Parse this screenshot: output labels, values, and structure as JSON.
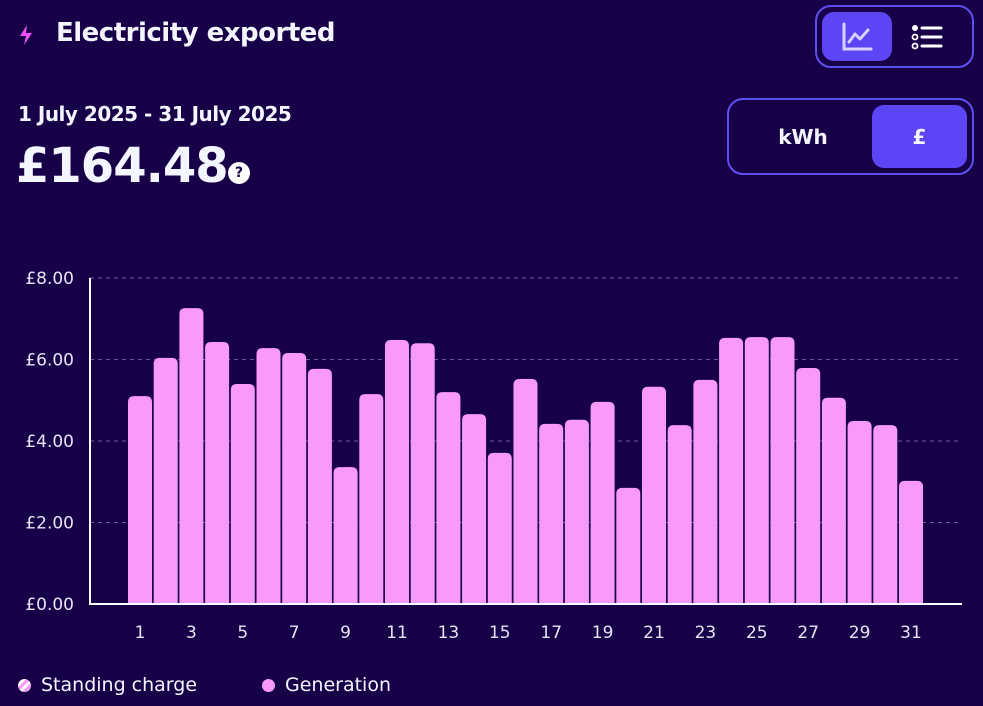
{
  "header": {
    "title": "Electricity exported",
    "icon": "lightning-bolt-icon",
    "icon_color": "#f050f8"
  },
  "summary": {
    "date_range": "1 July 2025 - 31 July 2025",
    "total": "£164.48",
    "help_label": "?"
  },
  "view_toggle": {
    "options": [
      "chart",
      "list"
    ],
    "selected": "chart"
  },
  "unit_toggle": {
    "options": [
      "kWh",
      "£"
    ],
    "selected": "£"
  },
  "colors": {
    "background": "#180048",
    "accent": "#5b45f5",
    "bar": "#f99afb"
  },
  "chart_data": {
    "type": "bar",
    "categories": [
      "1",
      "2",
      "3",
      "4",
      "5",
      "6",
      "7",
      "8",
      "9",
      "10",
      "11",
      "12",
      "13",
      "14",
      "15",
      "16",
      "17",
      "18",
      "19",
      "20",
      "21",
      "22",
      "23",
      "24",
      "25",
      "26",
      "27",
      "28",
      "29",
      "30",
      "31"
    ],
    "x_tick_labels": [
      "1",
      "3",
      "5",
      "7",
      "9",
      "11",
      "13",
      "15",
      "17",
      "19",
      "21",
      "23",
      "25",
      "27",
      "29",
      "31"
    ],
    "series": [
      {
        "name": "Generation",
        "values": [
          5.1,
          6.04,
          7.26,
          6.43,
          5.4,
          6.28,
          6.16,
          5.77,
          3.36,
          5.15,
          6.48,
          6.4,
          5.2,
          4.66,
          3.71,
          5.52,
          4.42,
          4.52,
          4.96,
          2.85,
          5.33,
          4.39,
          5.5,
          6.53,
          6.55,
          6.55,
          5.79,
          5.06,
          4.49,
          4.39,
          3.02
        ]
      }
    ],
    "ylim": [
      0,
      8
    ],
    "y_ticks": [
      0,
      2,
      4,
      6,
      8
    ],
    "y_tick_labels": [
      "£0.00",
      "£2.00",
      "£4.00",
      "£6.00",
      "£8.00"
    ],
    "grid": true,
    "legend": {
      "placement": "bottom-left",
      "entries": [
        "Standing charge",
        "Generation"
      ]
    }
  }
}
